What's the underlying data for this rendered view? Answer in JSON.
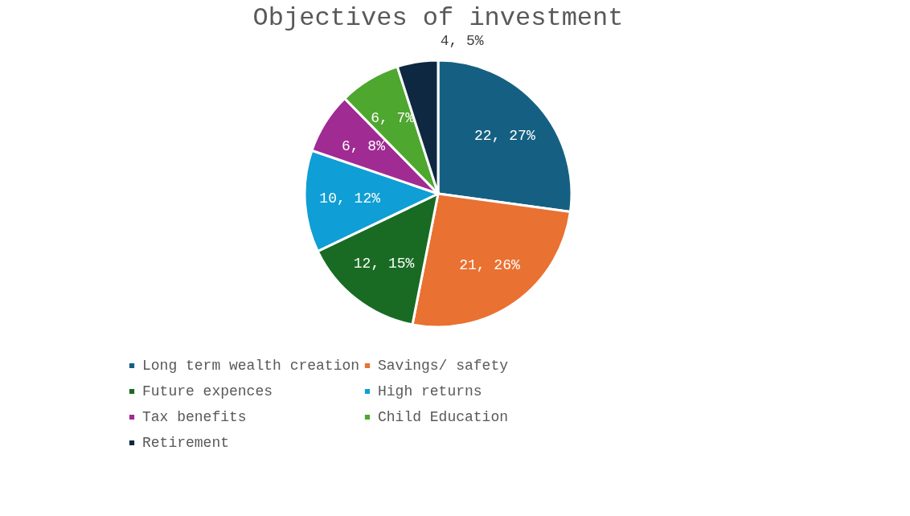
{
  "chart_data": {
    "type": "pie",
    "title": "Objectives of investment",
    "categories": [
      "Long term wealth creation",
      "Savings/ safety",
      "Future expences",
      "High returns",
      "Tax benefits",
      "Child Education",
      "Retirement"
    ],
    "values": [
      22,
      21,
      12,
      10,
      6,
      6,
      4
    ],
    "colors": [
      "#156082",
      "#e97132",
      "#196b24",
      "#0f9ed5",
      "#a02b93",
      "#4ea72e",
      "#0e2841"
    ],
    "value_labels": [
      "22, 27%",
      "21, 26%",
      "12, 15%",
      "10, 12%",
      "6, 8%",
      "6, 7%",
      "4, 5%"
    ],
    "legend": "bottom"
  }
}
